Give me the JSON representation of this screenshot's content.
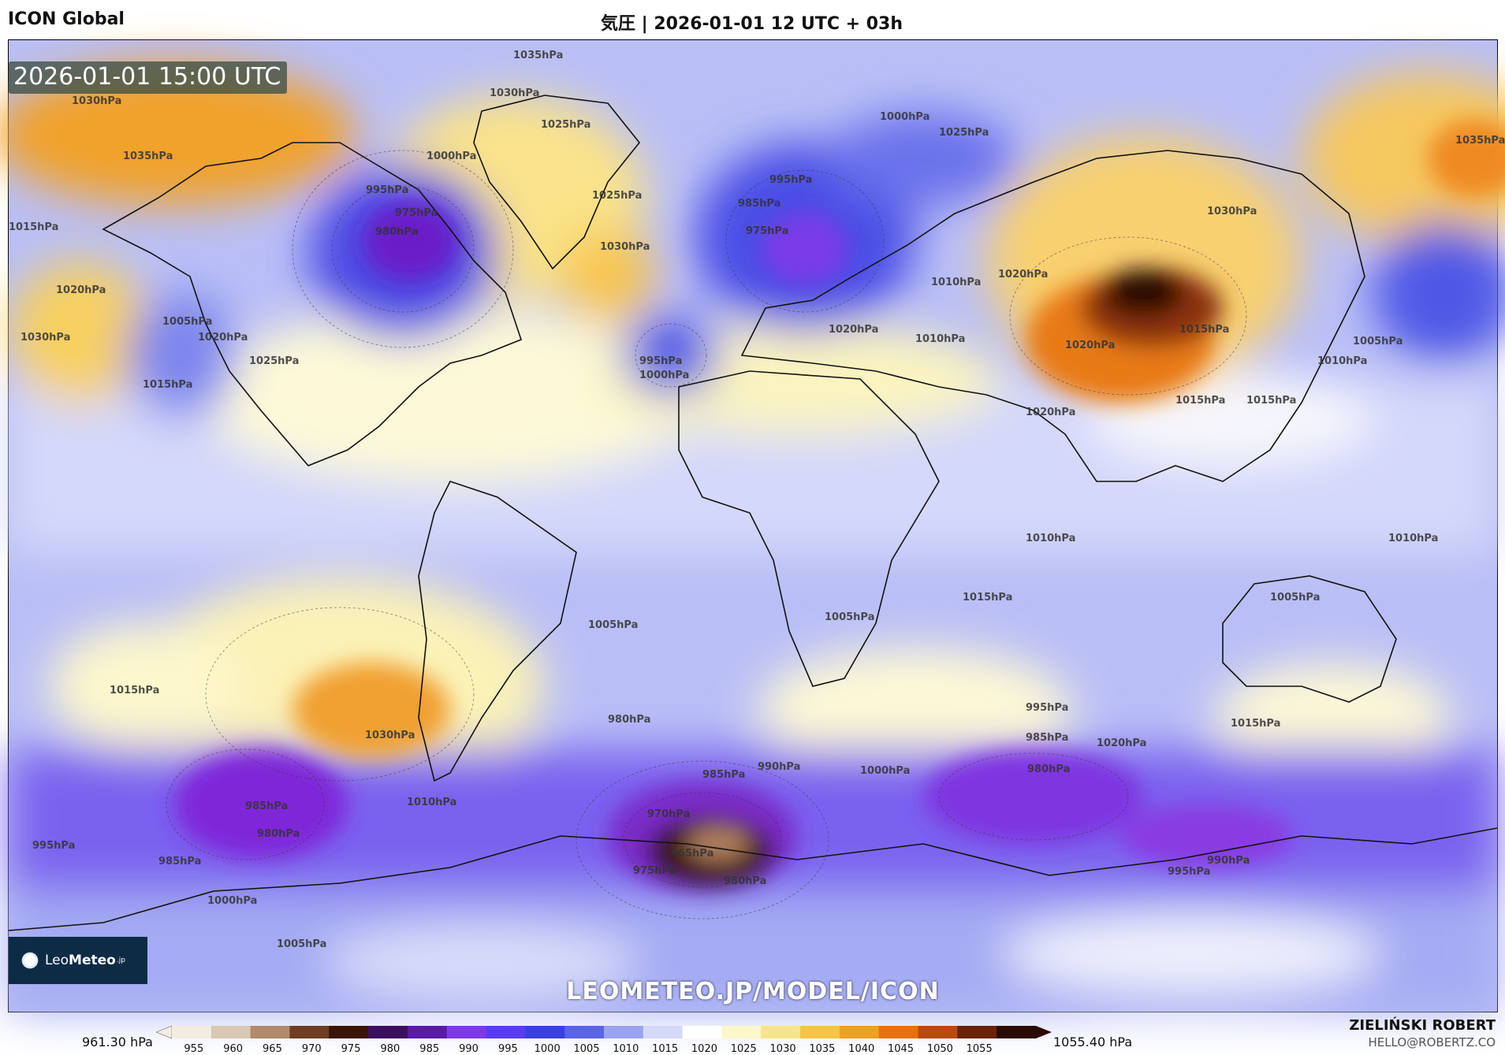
{
  "header": {
    "model": "ICON Global",
    "title": "気圧 | 2026-01-01 12 UTC + 03h"
  },
  "map": {
    "valid_time": "2026-01-01 15:00 UTC",
    "logo_text_light": "Leo",
    "logo_text_bold": "Meteo",
    "logo_suffix": ".jp",
    "url": "LEOMETEO.JP/MODEL/ICON",
    "isobar_labels": [
      "1035hPa",
      "1030hPa",
      "1030hPa",
      "1025hPa",
      "1035hPa",
      "1015hPa",
      "1020hPa",
      "995hPa",
      "975hPa",
      "980hPa",
      "1000hPa",
      "1025hPa",
      "1030hPa",
      "1005hPa",
      "1000hPa",
      "995hPa",
      "985hPa",
      "975hPa",
      "1010hPa",
      "1025hPa",
      "1035hPa",
      "1020hPa",
      "1005hPa",
      "1010hPa",
      "1020hPa",
      "1015hPa",
      "1020hPa",
      "995hPa",
      "1000hPa",
      "1010hPa",
      "1020hPa",
      "1030hPa",
      "1015hPa",
      "1015hPa",
      "1010hPa",
      "1010hPa",
      "1005hPa",
      "1005hPa",
      "1015hPa",
      "1025hPa",
      "1030hPa",
      "1020hPa",
      "1015hPa",
      "1005hPa",
      "980hPa",
      "985hPa",
      "990hPa",
      "1000hPa",
      "995hPa",
      "985hPa",
      "980hPa",
      "970hPa",
      "965hPa",
      "975hPa",
      "980hPa",
      "985hPa",
      "980hPa",
      "995hPa",
      "1010hPa",
      "990hPa",
      "985hPa",
      "1000hPa",
      "1005hPa",
      "995hPa",
      "1015hPa",
      "1020hPa",
      "1030hPa",
      "1015hPa"
    ]
  },
  "colorbar": {
    "min_label": "961.30 hPa",
    "max_label": "1055.40 hPa",
    "ticks": [
      "955",
      "960",
      "965",
      "970",
      "975",
      "980",
      "985",
      "990",
      "995",
      "1000",
      "1005",
      "1010",
      "1015",
      "1020",
      "1025",
      "1030",
      "1035",
      "1040",
      "1045",
      "1050",
      "1055"
    ],
    "colors": [
      "#f3ece2",
      "#d9c8b3",
      "#b08a6a",
      "#6e3d22",
      "#3b1408",
      "#3c0e5e",
      "#5a1aa8",
      "#7d38e8",
      "#5a3cf0",
      "#3b3fe0",
      "#5a63ea",
      "#9aa2f2",
      "#d4d9f8",
      "#ffffff",
      "#fbf7c8",
      "#f7e58a",
      "#f4c548",
      "#ef9f24",
      "#e87010",
      "#b94a0a",
      "#6b2206",
      "#2a0a02"
    ]
  },
  "footer": {
    "author": "ZIELIŃSKI ROBERT",
    "email": "HELLO@ROBERTZ.CO"
  }
}
